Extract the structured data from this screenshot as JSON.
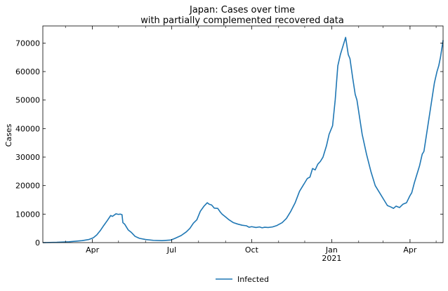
{
  "chart_data": {
    "type": "line",
    "title": "Japan: Cases over time",
    "subtitle": "with partially complemented recovered data",
    "xlabel": "",
    "ylabel": "Cases",
    "xlim": [
      "2020-02-04",
      "2021-05-09"
    ],
    "ylim": [
      0,
      76000
    ],
    "yticks": [
      0,
      10000,
      20000,
      30000,
      40000,
      50000,
      60000,
      70000
    ],
    "xticks": [
      {
        "date": "2020-04-01",
        "label": "Apr",
        "sublabel": ""
      },
      {
        "date": "2020-07-01",
        "label": "Jul",
        "sublabel": ""
      },
      {
        "date": "2020-10-01",
        "label": "Oct",
        "sublabel": ""
      },
      {
        "date": "2021-01-01",
        "label": "Jan",
        "sublabel": "2021"
      },
      {
        "date": "2021-04-01",
        "label": "Apr",
        "sublabel": ""
      }
    ],
    "minor_xticks": [
      "2020-03-01",
      "2020-05-01",
      "2020-06-01",
      "2020-08-01",
      "2020-09-01",
      "2020-11-01",
      "2020-12-01",
      "2021-02-01",
      "2021-03-01",
      "2021-05-01"
    ],
    "grid": false,
    "legend": {
      "placement": "bottom-center"
    },
    "series": [
      {
        "name": "Infected",
        "color": "#1f77b4",
        "points": [
          [
            "2020-02-04",
            0
          ],
          [
            "2020-02-20",
            100
          ],
          [
            "2020-03-05",
            300
          ],
          [
            "2020-03-20",
            700
          ],
          [
            "2020-03-28",
            1100
          ],
          [
            "2020-04-02",
            1700
          ],
          [
            "2020-04-06",
            2700
          ],
          [
            "2020-04-10",
            4200
          ],
          [
            "2020-04-14",
            6000
          ],
          [
            "2020-04-18",
            7700
          ],
          [
            "2020-04-22",
            9500
          ],
          [
            "2020-04-24",
            9200
          ],
          [
            "2020-04-28",
            10100
          ],
          [
            "2020-05-01",
            9900
          ],
          [
            "2020-05-03",
            10000
          ],
          [
            "2020-05-05",
            9800
          ],
          [
            "2020-05-06",
            7000
          ],
          [
            "2020-05-08",
            6500
          ],
          [
            "2020-05-12",
            4500
          ],
          [
            "2020-05-16",
            3500
          ],
          [
            "2020-05-20",
            2200
          ],
          [
            "2020-05-25",
            1500
          ],
          [
            "2020-06-01",
            1100
          ],
          [
            "2020-06-10",
            800
          ],
          [
            "2020-06-20",
            700
          ],
          [
            "2020-06-30",
            900
          ],
          [
            "2020-07-05",
            1500
          ],
          [
            "2020-07-12",
            2500
          ],
          [
            "2020-07-18",
            3800
          ],
          [
            "2020-07-22",
            5000
          ],
          [
            "2020-07-26",
            6800
          ],
          [
            "2020-07-30",
            8000
          ],
          [
            "2020-08-03",
            11000
          ],
          [
            "2020-08-07",
            12700
          ],
          [
            "2020-08-11",
            14000
          ],
          [
            "2020-08-13",
            13500
          ],
          [
            "2020-08-16",
            13200
          ],
          [
            "2020-08-19",
            12100
          ],
          [
            "2020-08-23",
            12000
          ],
          [
            "2020-08-26",
            10700
          ],
          [
            "2020-08-28",
            10000
          ],
          [
            "2020-09-01",
            9000
          ],
          [
            "2020-09-05",
            8000
          ],
          [
            "2020-09-10",
            7000
          ],
          [
            "2020-09-15",
            6500
          ],
          [
            "2020-09-20",
            6100
          ],
          [
            "2020-09-25",
            5900
          ],
          [
            "2020-09-28",
            5400
          ],
          [
            "2020-10-01",
            5600
          ],
          [
            "2020-10-06",
            5300
          ],
          [
            "2020-10-10",
            5500
          ],
          [
            "2020-10-13",
            5200
          ],
          [
            "2020-10-16",
            5400
          ],
          [
            "2020-10-20",
            5300
          ],
          [
            "2020-10-25",
            5500
          ],
          [
            "2020-10-30",
            6000
          ],
          [
            "2020-11-05",
            7000
          ],
          [
            "2020-11-10",
            8500
          ],
          [
            "2020-11-15",
            11000
          ],
          [
            "2020-11-20",
            14000
          ],
          [
            "2020-11-25",
            18000
          ],
          [
            "2020-11-29",
            20000
          ],
          [
            "2020-12-01",
            21000
          ],
          [
            "2020-12-04",
            22500
          ],
          [
            "2020-12-07",
            23000
          ],
          [
            "2020-12-10",
            26000
          ],
          [
            "2020-12-13",
            25500
          ],
          [
            "2020-12-16",
            27500
          ],
          [
            "2020-12-19",
            28500
          ],
          [
            "2020-12-22",
            30000
          ],
          [
            "2020-12-26",
            34000
          ],
          [
            "2020-12-29",
            38000
          ],
          [
            "2021-01-02",
            41000
          ],
          [
            "2021-01-05",
            50000
          ],
          [
            "2021-01-08",
            62000
          ],
          [
            "2021-01-11",
            66000
          ],
          [
            "2021-01-14",
            69000
          ],
          [
            "2021-01-17",
            72000
          ],
          [
            "2021-01-20",
            66000
          ],
          [
            "2021-01-22",
            64500
          ],
          [
            "2021-01-25",
            58000
          ],
          [
            "2021-01-28",
            52000
          ],
          [
            "2021-01-30",
            50000
          ],
          [
            "2021-02-02",
            44000
          ],
          [
            "2021-02-05",
            38000
          ],
          [
            "2021-02-10",
            31000
          ],
          [
            "2021-02-15",
            25000
          ],
          [
            "2021-02-20",
            20000
          ],
          [
            "2021-02-25",
            17500
          ],
          [
            "2021-03-02",
            15000
          ],
          [
            "2021-03-06",
            13000
          ],
          [
            "2021-03-10",
            12500
          ],
          [
            "2021-03-13",
            12000
          ],
          [
            "2021-03-16",
            12800
          ],
          [
            "2021-03-20",
            12300
          ],
          [
            "2021-03-24",
            13500
          ],
          [
            "2021-03-28",
            14000
          ],
          [
            "2021-04-01",
            16500
          ],
          [
            "2021-04-03",
            17500
          ],
          [
            "2021-04-06",
            21000
          ],
          [
            "2021-04-09",
            24000
          ],
          [
            "2021-04-12",
            27000
          ],
          [
            "2021-04-15",
            31000
          ],
          [
            "2021-04-17",
            32000
          ],
          [
            "2021-04-20",
            38000
          ],
          [
            "2021-04-23",
            44000
          ],
          [
            "2021-04-26",
            50000
          ],
          [
            "2021-04-29",
            56000
          ],
          [
            "2021-05-02",
            60000
          ],
          [
            "2021-05-04",
            62000
          ],
          [
            "2021-05-06",
            65000
          ],
          [
            "2021-05-09",
            71000
          ]
        ]
      }
    ]
  }
}
